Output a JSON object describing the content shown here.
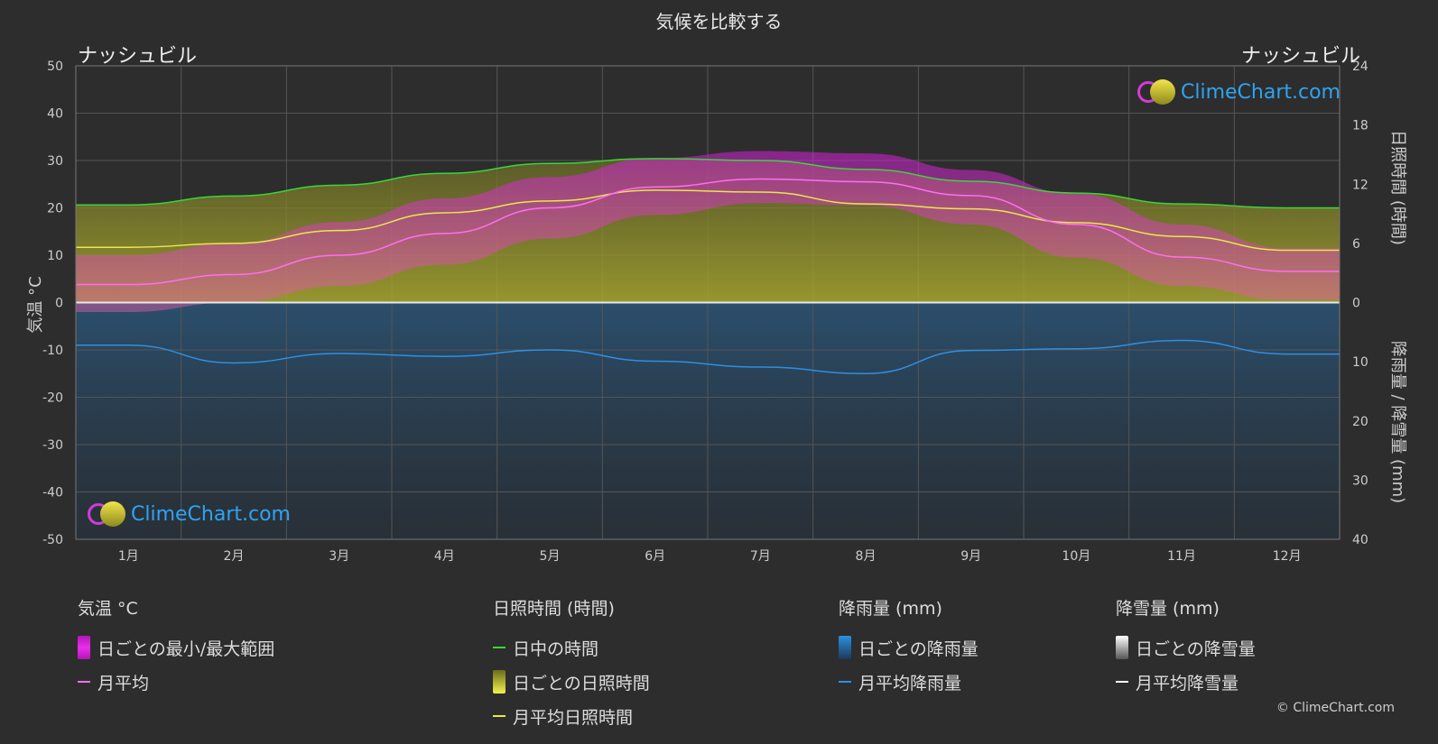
{
  "title": "気候を比較する",
  "location_left": "ナッシュビル",
  "location_right": "ナッシュビル",
  "copyright": "© ClimeChart.com",
  "logo_text": "ClimeChart.com",
  "colors": {
    "background": "#2d2d2d",
    "daylight": "#3ad63a",
    "sunshine_avg": "#e8e84a",
    "temp_avg": "#ff6ef2",
    "temp_range": "#d01ed6",
    "rain": "#2e7fc4",
    "snow": "#ffffff"
  },
  "chart_data": {
    "type": "line",
    "title": "気候を比較する",
    "categories": [
      "1月",
      "2月",
      "3月",
      "4月",
      "5月",
      "6月",
      "7月",
      "8月",
      "9月",
      "10月",
      "11月",
      "12月"
    ],
    "y_left": {
      "label": "気温 °C",
      "range": [
        -50,
        50
      ],
      "ticks": [
        50,
        40,
        30,
        20,
        10,
        0,
        -10,
        -20,
        -30,
        -40,
        -50
      ]
    },
    "y_right_top": {
      "label": "日照時間 (時間)",
      "range": [
        0,
        24
      ],
      "ticks": [
        24,
        18,
        12,
        6,
        0
      ]
    },
    "y_right_bottom": {
      "label": "降雨量 / 降雪量 (mm)",
      "range": [
        0,
        40
      ],
      "ticks": [
        0,
        10,
        20,
        30,
        40
      ]
    },
    "grid": true,
    "series": [
      {
        "name": "日中の時間",
        "axis": "sunshine_hours",
        "values": [
          9.9,
          10.8,
          11.9,
          13.1,
          14.1,
          14.6,
          14.4,
          13.5,
          12.3,
          11.1,
          10.0,
          9.6
        ]
      },
      {
        "name": "月平均日照時間",
        "axis": "sunshine_hours",
        "values": [
          5.6,
          6.0,
          7.3,
          9.1,
          10.3,
          11.4,
          11.2,
          10.0,
          9.5,
          8.1,
          6.7,
          5.3
        ]
      },
      {
        "name": "月平均",
        "axis": "temperature_c",
        "values": [
          3.8,
          5.9,
          10.0,
          14.6,
          20.0,
          24.4,
          26.1,
          25.5,
          22.6,
          16.5,
          9.6,
          6.6
        ]
      },
      {
        "name": "月平均降雨量",
        "axis": "precipitation_mm",
        "values": [
          7.2,
          10.2,
          8.6,
          9.1,
          8.0,
          9.9,
          10.9,
          12.0,
          8.1,
          7.8,
          6.4,
          8.7
        ]
      },
      {
        "name": "日ごとの最小/最大範囲",
        "axis": "temperature_c",
        "min": [
          -2.0,
          0.0,
          3.5,
          8.0,
          13.5,
          18.5,
          21.0,
          20.5,
          16.5,
          9.5,
          3.5,
          0.5
        ],
        "max": [
          10.0,
          12.5,
          17.0,
          22.0,
          26.5,
          30.5,
          32.0,
          31.5,
          28.0,
          23.0,
          16.5,
          11.5
        ]
      }
    ]
  },
  "legend": {
    "temp": {
      "header": "気温 °C",
      "items": [
        "日ごとの最小/最大範囲",
        "月平均"
      ]
    },
    "sun": {
      "header": "日照時間 (時間)",
      "items": [
        "日中の時間",
        "日ごとの日照時間",
        "月平均日照時間"
      ]
    },
    "rain": {
      "header": "降雨量 (mm)",
      "items": [
        "日ごとの降雨量",
        "月平均降雨量"
      ]
    },
    "snow": {
      "header": "降雪量 (mm)",
      "items": [
        "日ごとの降雪量",
        "月平均降雪量"
      ]
    }
  }
}
